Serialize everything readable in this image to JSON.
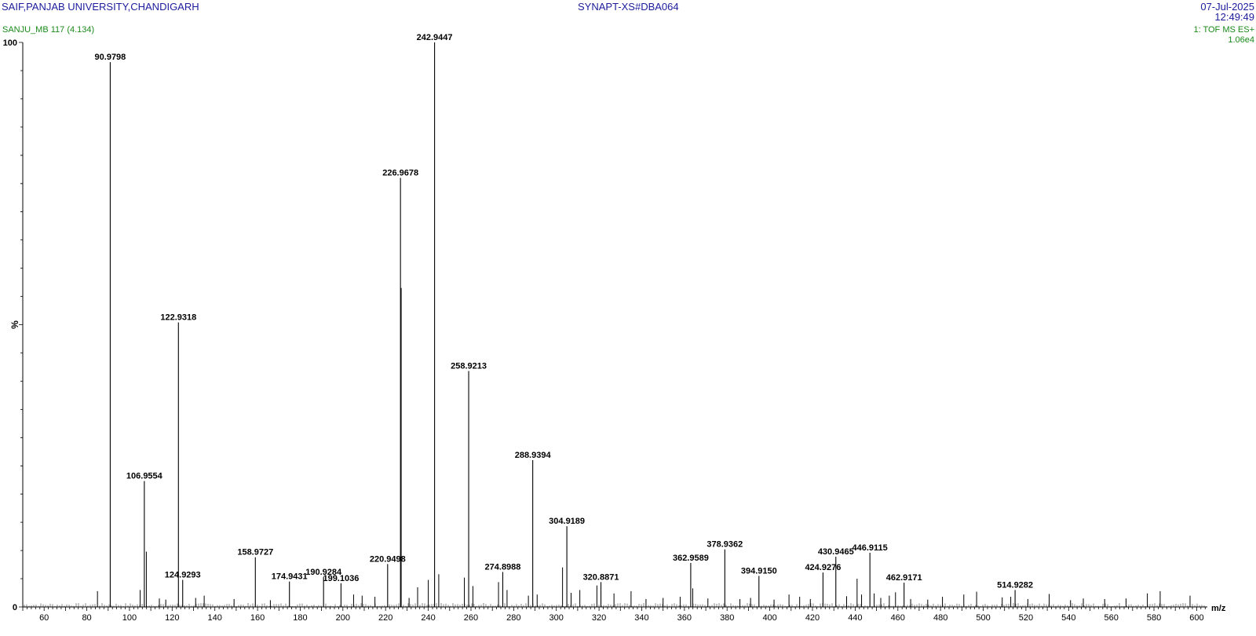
{
  "header": {
    "institution": "SAIF,PANJAB UNIVERSITY,CHANDIGARH",
    "instrument_file": "SYNAPT-XS#DBA064",
    "date": "07-Jul-2025",
    "time": "12:49:49",
    "sample": "SANJU_MB 117 (4.134)",
    "scan_function": "1: TOF MS ES+",
    "base_intensity": "1.06e4"
  },
  "colors": {
    "header_text": "#1c1c9c",
    "sample_text": "#1a8a1a",
    "axis": "#000000",
    "peak": "#000000"
  },
  "chart_data": {
    "type": "bar",
    "xlabel": "m/z",
    "ylabel": "%",
    "xlim": [
      50,
      605
    ],
    "ylim": [
      0,
      100
    ],
    "x_ticks": [
      60,
      80,
      100,
      120,
      140,
      160,
      180,
      200,
      220,
      240,
      260,
      280,
      300,
      320,
      340,
      360,
      380,
      400,
      420,
      440,
      460,
      480,
      500,
      520,
      540,
      560,
      580,
      600
    ],
    "y_tick_labels": [
      "0",
      "100"
    ],
    "grid": false,
    "labeled_peaks": [
      {
        "mz": 90.9798,
        "label": "90.9798",
        "intensity": 96.5
      },
      {
        "mz": 106.9554,
        "label": "106.9554",
        "intensity": 22.3
      },
      {
        "mz": 122.9318,
        "label": "122.9318",
        "intensity": 50.4
      },
      {
        "mz": 124.9293,
        "label": "124.9293",
        "intensity": 4.8
      },
      {
        "mz": 158.9727,
        "label": "158.9727",
        "intensity": 8.8
      },
      {
        "mz": 174.9431,
        "label": "174.9431",
        "intensity": 4.5
      },
      {
        "mz": 190.9284,
        "label": "190.9284",
        "intensity": 5.3
      },
      {
        "mz": 199.1036,
        "label": "199.1036",
        "intensity": 4.2
      },
      {
        "mz": 220.9498,
        "label": "220.9498",
        "intensity": 7.6
      },
      {
        "mz": 226.9678,
        "label": "226.9678",
        "intensity": 76.0
      },
      {
        "mz": 242.9447,
        "label": "242.9447",
        "intensity": 100.0
      },
      {
        "mz": 258.9213,
        "label": "258.9213",
        "intensity": 41.8
      },
      {
        "mz": 274.8988,
        "label": "274.8988",
        "intensity": 6.2
      },
      {
        "mz": 288.9394,
        "label": "288.9394",
        "intensity": 26.0
      },
      {
        "mz": 304.9189,
        "label": "304.9189",
        "intensity": 14.3
      },
      {
        "mz": 320.8871,
        "label": "320.8871",
        "intensity": 4.4
      },
      {
        "mz": 362.9589,
        "label": "362.9589",
        "intensity": 7.8
      },
      {
        "mz": 378.9362,
        "label": "378.9362",
        "intensity": 10.2
      },
      {
        "mz": 394.915,
        "label": "394.9150",
        "intensity": 5.5
      },
      {
        "mz": 424.9276,
        "label": "424.9276",
        "intensity": 6.1
      },
      {
        "mz": 430.9465,
        "label": "430.9465",
        "intensity": 8.9
      },
      {
        "mz": 446.9115,
        "label": "446.9115",
        "intensity": 9.6
      },
      {
        "mz": 462.9171,
        "label": "462.9171",
        "intensity": 4.3
      },
      {
        "mz": 514.9282,
        "label": "514.9282",
        "intensity": 3.0
      }
    ],
    "minor_peaks": [
      {
        "mz": 85.0,
        "intensity": 2.8
      },
      {
        "mz": 105.0,
        "intensity": 3.0
      },
      {
        "mz": 107.9,
        "intensity": 9.8
      },
      {
        "mz": 114.0,
        "intensity": 1.5
      },
      {
        "mz": 117.0,
        "intensity": 1.3
      },
      {
        "mz": 131.0,
        "intensity": 1.6
      },
      {
        "mz": 135.0,
        "intensity": 2.0
      },
      {
        "mz": 149.0,
        "intensity": 1.4
      },
      {
        "mz": 166.0,
        "intensity": 1.2
      },
      {
        "mz": 205.0,
        "intensity": 2.2
      },
      {
        "mz": 209.0,
        "intensity": 2.0
      },
      {
        "mz": 215.0,
        "intensity": 1.8
      },
      {
        "mz": 227.3,
        "intensity": 56.5
      },
      {
        "mz": 231.0,
        "intensity": 1.6
      },
      {
        "mz": 235.0,
        "intensity": 3.5
      },
      {
        "mz": 240.0,
        "intensity": 4.8
      },
      {
        "mz": 244.9,
        "intensity": 5.8
      },
      {
        "mz": 256.9,
        "intensity": 5.2
      },
      {
        "mz": 260.9,
        "intensity": 3.7
      },
      {
        "mz": 272.9,
        "intensity": 4.4
      },
      {
        "mz": 276.9,
        "intensity": 3.0
      },
      {
        "mz": 286.9,
        "intensity": 2.0
      },
      {
        "mz": 291.0,
        "intensity": 2.2
      },
      {
        "mz": 302.9,
        "intensity": 7.0
      },
      {
        "mz": 306.9,
        "intensity": 2.5
      },
      {
        "mz": 311.0,
        "intensity": 3.0
      },
      {
        "mz": 319.0,
        "intensity": 3.8
      },
      {
        "mz": 327.0,
        "intensity": 2.4
      },
      {
        "mz": 335.0,
        "intensity": 2.8
      },
      {
        "mz": 342.0,
        "intensity": 1.4
      },
      {
        "mz": 350.0,
        "intensity": 1.6
      },
      {
        "mz": 358.0,
        "intensity": 1.8
      },
      {
        "mz": 363.9,
        "intensity": 3.3
      },
      {
        "mz": 371.0,
        "intensity": 1.5
      },
      {
        "mz": 386.0,
        "intensity": 1.4
      },
      {
        "mz": 391.0,
        "intensity": 1.6
      },
      {
        "mz": 402.0,
        "intensity": 1.3
      },
      {
        "mz": 409.0,
        "intensity": 2.2
      },
      {
        "mz": 414.0,
        "intensity": 1.8
      },
      {
        "mz": 419.0,
        "intensity": 1.4
      },
      {
        "mz": 436.0,
        "intensity": 1.9
      },
      {
        "mz": 440.9,
        "intensity": 5.0
      },
      {
        "mz": 443.0,
        "intensity": 2.2
      },
      {
        "mz": 448.9,
        "intensity": 2.4
      },
      {
        "mz": 452.0,
        "intensity": 1.6
      },
      {
        "mz": 456.0,
        "intensity": 2.0
      },
      {
        "mz": 458.9,
        "intensity": 2.6
      },
      {
        "mz": 466.0,
        "intensity": 1.4
      },
      {
        "mz": 474.0,
        "intensity": 1.3
      },
      {
        "mz": 480.9,
        "intensity": 1.8
      },
      {
        "mz": 490.9,
        "intensity": 2.2
      },
      {
        "mz": 496.9,
        "intensity": 2.7
      },
      {
        "mz": 508.9,
        "intensity": 1.7
      },
      {
        "mz": 512.9,
        "intensity": 1.8
      },
      {
        "mz": 520.9,
        "intensity": 1.4
      },
      {
        "mz": 530.9,
        "intensity": 2.3
      },
      {
        "mz": 540.9,
        "intensity": 1.2
      },
      {
        "mz": 546.9,
        "intensity": 1.5
      },
      {
        "mz": 556.9,
        "intensity": 1.4
      },
      {
        "mz": 566.9,
        "intensity": 1.5
      },
      {
        "mz": 576.9,
        "intensity": 2.4
      },
      {
        "mz": 582.9,
        "intensity": 2.8
      },
      {
        "mz": 596.9,
        "intensity": 2.0
      }
    ]
  }
}
